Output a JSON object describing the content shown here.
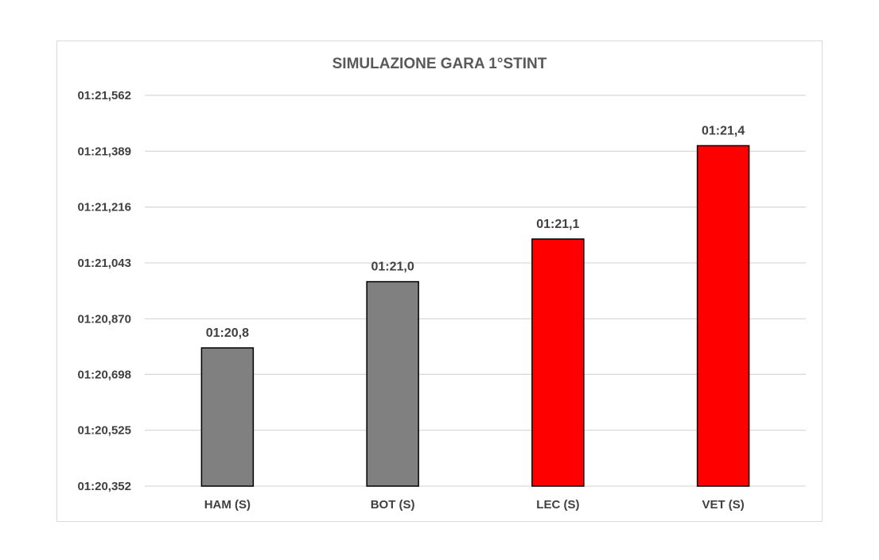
{
  "chart_data": {
    "type": "bar",
    "title": "SIMULAZIONE GARA 1°STINT",
    "xlabel": "",
    "ylabel": "",
    "categories": [
      "HAM (S)",
      "BOT (S)",
      "LEC (S)",
      "VET (S)"
    ],
    "values": [
      80.78,
      80.985,
      81.117,
      81.406
    ],
    "data_labels": [
      "01:20,8",
      "01:21,0",
      "01:21,1",
      "01:21,4"
    ],
    "bar_colors": [
      "#808080",
      "#808080",
      "#ff0000",
      "#ff0000"
    ],
    "bar_border_color": "#000000",
    "y_ticks": [
      80.352,
      80.525,
      80.698,
      80.87,
      81.043,
      81.216,
      81.389,
      81.562
    ],
    "y_tick_labels": [
      "01:20,352",
      "01:20,525",
      "01:20,698",
      "01:20,870",
      "01:21,043",
      "01:21,216",
      "01:21,389",
      "01:21,562"
    ],
    "ylim": [
      80.352,
      81.562
    ],
    "grid": true,
    "legend": "none"
  }
}
